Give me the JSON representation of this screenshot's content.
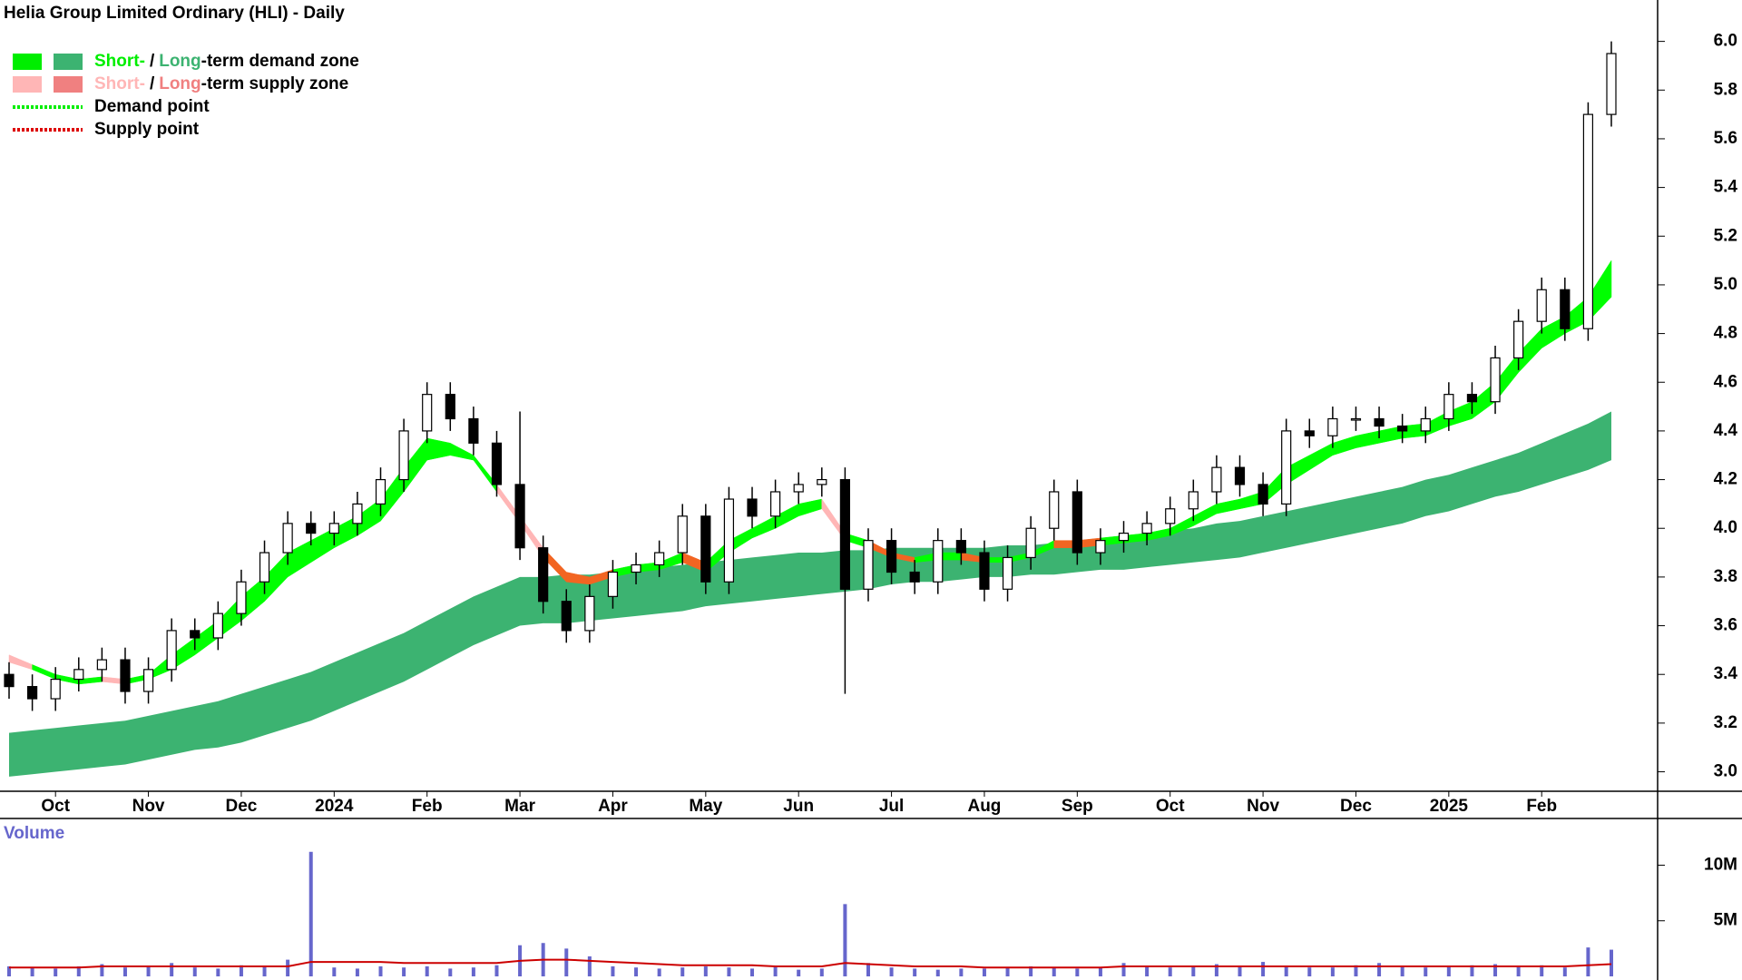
{
  "chart_data": {
    "type": "candlestick",
    "title": "Helia Group Limited Ordinary (HLI) - Daily",
    "categories": [
      null,
      null,
      "Oct",
      null,
      null,
      null,
      "Nov",
      null,
      null,
      null,
      "Dec",
      null,
      null,
      null,
      "2024",
      null,
      null,
      null,
      "Feb",
      null,
      null,
      null,
      "Mar",
      null,
      null,
      null,
      "Apr",
      null,
      null,
      null,
      "May",
      null,
      null,
      null,
      "Jun",
      null,
      null,
      null,
      "Jul",
      null,
      null,
      null,
      "Aug",
      null,
      null,
      null,
      "Sep",
      null,
      null,
      null,
      "Oct",
      null,
      null,
      null,
      "Nov",
      null,
      null,
      null,
      "Dec",
      null,
      null,
      null,
      "2025",
      null,
      null,
      null,
      "Feb",
      null,
      null,
      null
    ],
    "open": [
      3.4,
      3.35,
      3.3,
      3.38,
      3.42,
      3.46,
      3.33,
      3.42,
      3.58,
      3.55,
      3.65,
      3.78,
      3.9,
      4.02,
      3.98,
      4.02,
      4.1,
      4.2,
      4.4,
      4.55,
      4.45,
      4.35,
      4.18,
      3.92,
      3.7,
      3.58,
      3.72,
      3.82,
      3.85,
      3.9,
      4.05,
      3.78,
      4.12,
      4.05,
      4.15,
      4.18,
      4.2,
      3.75,
      3.95,
      3.82,
      3.78,
      3.95,
      3.9,
      3.75,
      3.88,
      4.0,
      4.15,
      3.9,
      3.95,
      3.98,
      4.02,
      4.08,
      4.15,
      4.25,
      4.18,
      4.1,
      4.4,
      4.38,
      4.45,
      4.45,
      4.42,
      4.4,
      4.45,
      4.55,
      4.52,
      4.7,
      4.85,
      4.98,
      4.82,
      5.7
    ],
    "high": [
      3.45,
      3.4,
      3.43,
      3.47,
      3.51,
      3.51,
      3.47,
      3.63,
      3.63,
      3.7,
      3.83,
      3.95,
      4.07,
      4.07,
      4.07,
      4.15,
      4.25,
      4.45,
      4.6,
      4.6,
      4.5,
      4.4,
      4.48,
      3.97,
      3.75,
      3.77,
      3.87,
      3.9,
      3.95,
      4.1,
      4.1,
      4.17,
      4.17,
      4.2,
      4.23,
      4.25,
      4.25,
      4.0,
      4.0,
      3.87,
      4.0,
      4.0,
      3.95,
      3.93,
      4.05,
      4.2,
      4.2,
      4.0,
      4.03,
      4.07,
      4.13,
      4.2,
      4.3,
      4.3,
      4.23,
      4.45,
      4.45,
      4.5,
      4.5,
      4.5,
      4.47,
      4.5,
      4.6,
      4.6,
      4.75,
      4.9,
      5.03,
      5.03,
      5.75,
      6.0
    ],
    "low": [
      3.3,
      3.25,
      3.25,
      3.33,
      3.37,
      3.28,
      3.28,
      3.37,
      3.5,
      3.5,
      3.6,
      3.73,
      3.85,
      3.93,
      3.93,
      3.97,
      4.05,
      4.15,
      4.35,
      4.4,
      4.3,
      4.13,
      3.87,
      3.65,
      3.53,
      3.53,
      3.67,
      3.77,
      3.8,
      3.85,
      3.73,
      3.73,
      4.0,
      4.0,
      4.1,
      4.13,
      3.32,
      3.7,
      3.77,
      3.73,
      3.73,
      3.85,
      3.7,
      3.7,
      3.83,
      3.95,
      3.85,
      3.85,
      3.9,
      3.93,
      3.97,
      4.03,
      4.1,
      4.13,
      4.05,
      4.05,
      4.33,
      4.33,
      4.4,
      4.37,
      4.35,
      4.35,
      4.4,
      4.47,
      4.47,
      4.65,
      4.8,
      4.77,
      4.77,
      5.65
    ],
    "close": [
      3.35,
      3.3,
      3.38,
      3.42,
      3.46,
      3.33,
      3.42,
      3.58,
      3.55,
      3.65,
      3.78,
      3.9,
      4.02,
      3.98,
      4.02,
      4.1,
      4.2,
      4.4,
      4.55,
      4.45,
      4.35,
      4.18,
      3.92,
      3.7,
      3.58,
      3.72,
      3.82,
      3.85,
      3.9,
      4.05,
      3.78,
      4.12,
      4.05,
      4.15,
      4.18,
      4.2,
      3.75,
      3.95,
      3.82,
      3.78,
      3.95,
      3.9,
      3.75,
      3.88,
      4.0,
      4.15,
      3.9,
      3.95,
      3.98,
      4.02,
      4.08,
      4.15,
      4.25,
      4.18,
      4.1,
      4.4,
      4.38,
      4.45,
      4.45,
      4.42,
      4.4,
      4.45,
      4.55,
      4.52,
      4.7,
      4.85,
      4.98,
      4.82,
      5.7,
      5.95
    ],
    "ylim": [
      2.92,
      6.17
    ],
    "yticks": [
      {
        "value": 3,
        "label": "3.0"
      },
      3.2,
      3.4,
      3.6,
      3.8,
      {
        "value": 4,
        "label": "4.0"
      },
      4.2,
      4.4,
      4.6,
      4.8,
      {
        "value": 5,
        "label": "5.0"
      },
      5.2,
      5.4,
      5.6,
      5.8,
      {
        "value": 6,
        "label": "6.0"
      }
    ],
    "up_color": "#ffffff",
    "down_color": "#000000",
    "zones": {
      "short_upper": [
        3.48,
        3.44,
        3.4,
        3.38,
        3.39,
        3.38,
        3.4,
        3.48,
        3.55,
        3.62,
        3.72,
        3.8,
        3.9,
        3.95,
        4.0,
        4.05,
        4.12,
        4.25,
        4.37,
        4.35,
        4.3,
        4.18,
        4.05,
        3.92,
        3.82,
        3.8,
        3.83,
        3.85,
        3.86,
        3.9,
        3.86,
        3.95,
        4.0,
        4.05,
        4.1,
        4.12,
        3.98,
        3.95,
        3.9,
        3.88,
        3.9,
        3.9,
        3.88,
        3.88,
        3.9,
        3.95,
        3.95,
        3.96,
        3.97,
        3.98,
        4.0,
        4.05,
        4.1,
        4.12,
        4.15,
        4.25,
        4.3,
        4.35,
        4.38,
        4.4,
        4.42,
        4.43,
        4.48,
        4.52,
        4.6,
        4.72,
        4.82,
        4.87,
        4.95,
        5.1
      ],
      "short_lower": [
        3.45,
        3.42,
        3.38,
        3.36,
        3.37,
        3.36,
        3.38,
        3.42,
        3.48,
        3.55,
        3.62,
        3.7,
        3.8,
        3.86,
        3.92,
        3.97,
        4.03,
        4.15,
        4.28,
        4.3,
        4.28,
        4.15,
        4.02,
        3.88,
        3.78,
        3.77,
        3.8,
        3.82,
        3.83,
        3.86,
        3.82,
        3.9,
        3.96,
        4.0,
        4.05,
        4.08,
        3.95,
        3.92,
        3.88,
        3.86,
        3.87,
        3.87,
        3.86,
        3.86,
        3.88,
        3.92,
        3.92,
        3.93,
        3.94,
        3.95,
        3.97,
        4.01,
        4.06,
        4.08,
        4.1,
        4.18,
        4.24,
        4.3,
        4.33,
        4.35,
        4.37,
        4.38,
        4.42,
        4.45,
        4.52,
        4.64,
        4.74,
        4.8,
        4.85,
        4.95
      ],
      "long_upper": [
        3.16,
        3.17,
        3.18,
        3.19,
        3.2,
        3.21,
        3.23,
        3.25,
        3.27,
        3.29,
        3.32,
        3.35,
        3.38,
        3.41,
        3.45,
        3.49,
        3.53,
        3.57,
        3.62,
        3.67,
        3.72,
        3.76,
        3.8,
        3.8,
        3.81,
        3.81,
        3.82,
        3.83,
        3.84,
        3.85,
        3.86,
        3.87,
        3.88,
        3.89,
        3.9,
        3.9,
        3.91,
        3.91,
        3.92,
        3.92,
        3.92,
        3.92,
        3.92,
        3.93,
        3.93,
        3.94,
        3.95,
        3.96,
        3.97,
        3.98,
        3.99,
        4.0,
        4.02,
        4.03,
        4.05,
        4.07,
        4.09,
        4.11,
        4.13,
        4.15,
        4.17,
        4.2,
        4.22,
        4.25,
        4.28,
        4.31,
        4.35,
        4.39,
        4.43,
        4.48
      ],
      "long_lower": [
        2.98,
        2.99,
        3.0,
        3.01,
        3.02,
        3.03,
        3.05,
        3.07,
        3.09,
        3.1,
        3.12,
        3.15,
        3.18,
        3.21,
        3.25,
        3.29,
        3.33,
        3.37,
        3.42,
        3.47,
        3.52,
        3.56,
        3.6,
        3.61,
        3.61,
        3.62,
        3.63,
        3.64,
        3.65,
        3.66,
        3.68,
        3.69,
        3.7,
        3.71,
        3.72,
        3.73,
        3.74,
        3.75,
        3.77,
        3.78,
        3.78,
        3.79,
        3.8,
        3.8,
        3.81,
        3.81,
        3.82,
        3.83,
        3.83,
        3.84,
        3.85,
        3.86,
        3.87,
        3.88,
        3.9,
        3.92,
        3.94,
        3.96,
        3.98,
        4.0,
        4.02,
        4.05,
        4.07,
        4.1,
        4.13,
        4.15,
        4.18,
        4.21,
        4.24,
        4.28
      ],
      "short_demand_color": "#00ff00",
      "short_supply_color": "#ffb6b6",
      "long_demand_color": "#3cb371",
      "overlap_color": "#f26522"
    },
    "volume": {
      "label": "Volume",
      "values": [
        0.9,
        0.8,
        0.7,
        0.9,
        1.1,
        0.8,
        0.9,
        1.2,
        0.8,
        0.7,
        1.0,
        0.9,
        1.5,
        11.2,
        0.8,
        0.7,
        0.9,
        0.8,
        0.9,
        0.7,
        0.8,
        1.0,
        2.8,
        3.0,
        2.5,
        1.8,
        0.9,
        0.8,
        0.7,
        0.8,
        0.9,
        0.8,
        0.7,
        0.9,
        0.6,
        0.7,
        6.5,
        1.2,
        0.8,
        0.7,
        0.6,
        0.7,
        0.7,
        0.8,
        0.9,
        0.8,
        0.7,
        0.8,
        1.2,
        0.9,
        0.8,
        0.9,
        1.1,
        0.9,
        1.3,
        0.9,
        0.8,
        0.8,
        1.0,
        1.2,
        0.9,
        0.8,
        0.9,
        1.0,
        1.1,
        0.9,
        1.0,
        0.8,
        2.6,
        2.4
      ],
      "average": [
        0.8,
        0.8,
        0.8,
        0.8,
        0.9,
        0.9,
        0.9,
        0.9,
        0.9,
        0.9,
        0.9,
        0.9,
        0.9,
        1.3,
        1.3,
        1.3,
        1.3,
        1.2,
        1.2,
        1.2,
        1.2,
        1.2,
        1.4,
        1.5,
        1.5,
        1.4,
        1.3,
        1.2,
        1.1,
        1.0,
        1.0,
        1.0,
        1.0,
        0.9,
        0.9,
        0.9,
        1.2,
        1.1,
        1.0,
        0.9,
        0.9,
        0.9,
        0.8,
        0.8,
        0.8,
        0.8,
        0.8,
        0.8,
        0.9,
        0.9,
        0.9,
        0.9,
        0.9,
        0.9,
        0.9,
        0.9,
        0.9,
        0.9,
        0.9,
        0.9,
        0.9,
        0.9,
        0.9,
        0.9,
        0.9,
        0.9,
        0.9,
        0.9,
        1.0,
        1.1
      ],
      "color": "#6666cc",
      "average_color": "#cc0000",
      "ylim": [
        0,
        14.2
      ],
      "yticks": [
        {
          "value": 5,
          "label": "5M"
        },
        {
          "value": 10,
          "label": "10M"
        }
      ]
    },
    "legend": [
      {
        "kind": "zone",
        "short": "Short-",
        "slash": "/",
        "long": "Long",
        "rest": "-term demand zone",
        "short_color": "#00ee00",
        "long_color": "#3cb371"
      },
      {
        "kind": "zone",
        "short": "Short-",
        "slash": "/",
        "long": "Long",
        "rest": "-term supply zone",
        "short_color": "#ffb6b6",
        "long_color": "#f08080"
      },
      {
        "kind": "point",
        "text": "Demand point",
        "color": "#00ee00"
      },
      {
        "kind": "point",
        "text": "Supply point",
        "color": "#dd0000"
      }
    ]
  }
}
